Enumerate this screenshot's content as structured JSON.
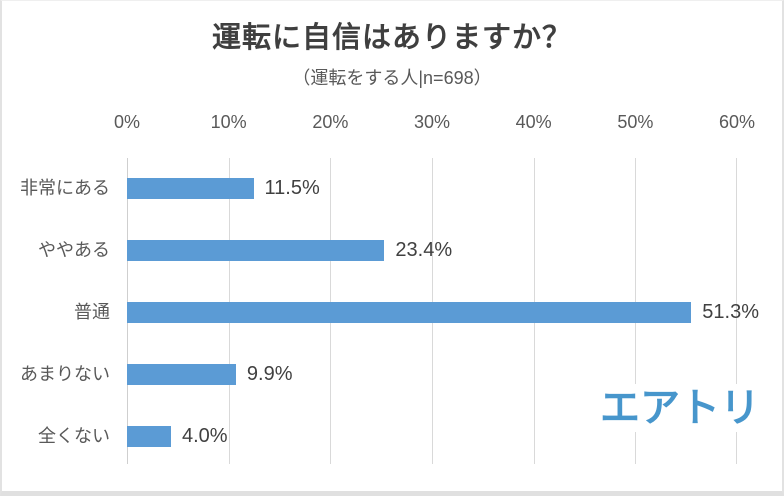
{
  "chart_data": {
    "type": "bar",
    "orientation": "horizontal",
    "title": "運転に自信はありますか？",
    "subtitle": "（運転をする人|n=698）",
    "categories": [
      "非常にある",
      "ややある",
      "普通",
      "あまりない",
      "全くない"
    ],
    "values": [
      11.5,
      23.4,
      51.3,
      9.9,
      4.0
    ],
    "value_labels": [
      "11.5%",
      "23.4%",
      "51.3%",
      "9.9%",
      "4.0%"
    ],
    "x_tick_labels": [
      "0%",
      "10%",
      "20%",
      "30%",
      "40%",
      "50%",
      "60%"
    ],
    "xlim": [
      0,
      60
    ],
    "grid": true,
    "legend": "none",
    "axis_position": "top"
  },
  "branding": {
    "logo_text": "エアトリ"
  },
  "colors": {
    "bar": "#5B9BD5",
    "gridline": "#D9D9D9",
    "title_text": "#3F3F3F",
    "axis_text": "#595959",
    "value_text": "#404040",
    "logo": "#4796CC"
  }
}
